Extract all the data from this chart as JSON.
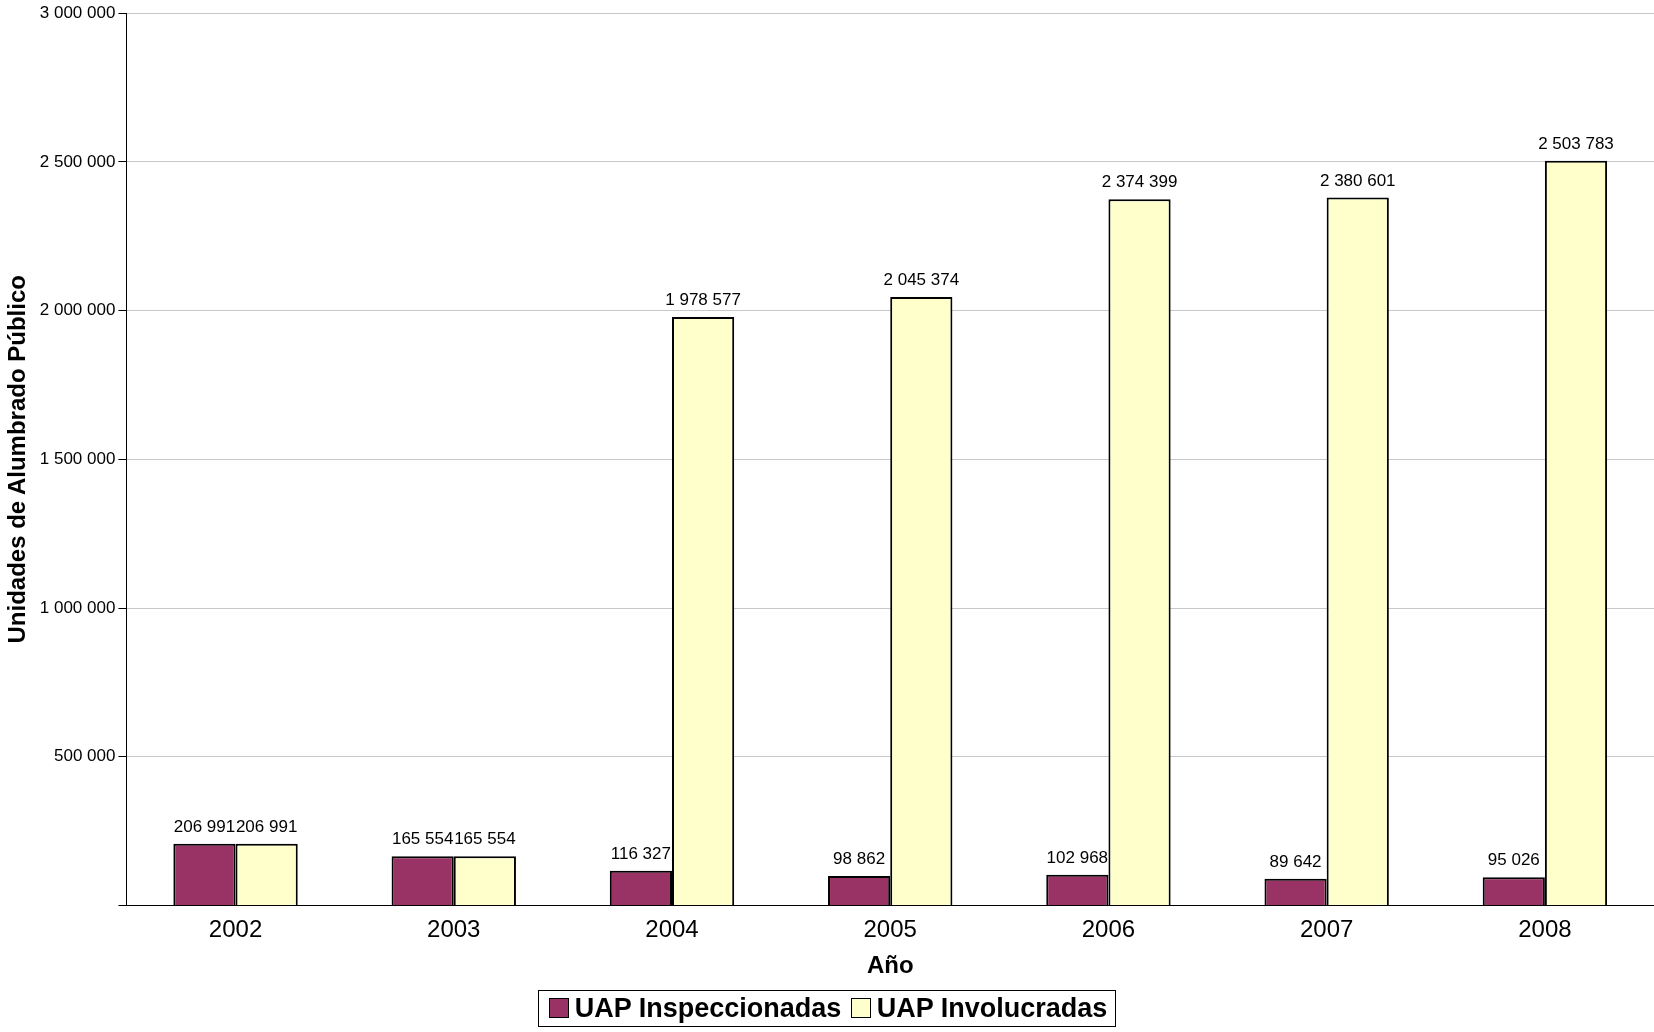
{
  "chart_data": {
    "type": "bar",
    "categories": [
      "2002",
      "2003",
      "2004",
      "2005",
      "2006",
      "2007",
      "2008"
    ],
    "series": [
      {
        "name": "UAP Inspeccionadas",
        "color": "#993366",
        "values": [
          206991,
          165554,
          116327,
          98862,
          102968,
          89642,
          95026
        ],
        "value_labels": [
          "206 991",
          "165 554",
          "116 327",
          "98 862",
          "102 968",
          "89 642",
          "95 026"
        ]
      },
      {
        "name": "UAP Involucradas",
        "color": "#ffffcc",
        "values": [
          206991,
          165554,
          1978577,
          2045374,
          2374399,
          2380601,
          2503783
        ],
        "value_labels": [
          "206 991",
          "165 554",
          "1 978 577",
          "2 045 374",
          "2 374 399",
          "2 380 601",
          "2 503 783"
        ]
      }
    ],
    "xlabel": "Año",
    "ylabel": "Unidades de Alumbrado Público",
    "ylim": [
      0,
      3000000
    ],
    "yticks": [
      {
        "value": 0,
        "label": null
      },
      {
        "value": 500000,
        "label": "500 000"
      },
      {
        "value": 1000000,
        "label": "1 000 000"
      },
      {
        "value": 1500000,
        "label": "1 500 000"
      },
      {
        "value": 2000000,
        "label": "2 000 000"
      },
      {
        "value": 2500000,
        "label": "2 500 000"
      },
      {
        "value": 3000000,
        "label": "3 000 000"
      }
    ],
    "grid": "y",
    "legend": "bottom"
  }
}
